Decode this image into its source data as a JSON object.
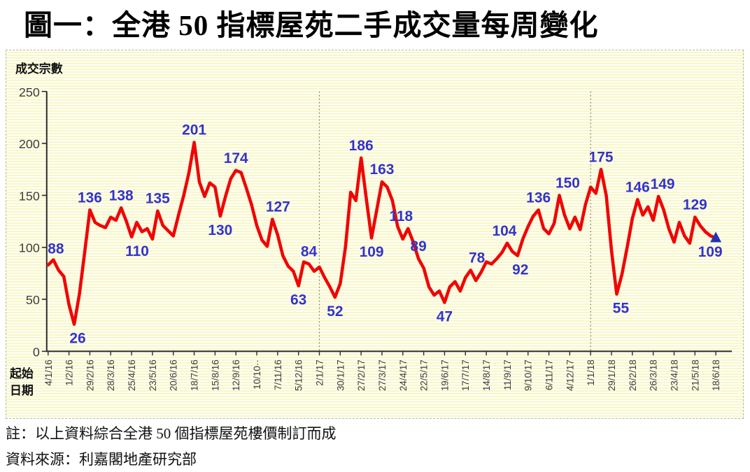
{
  "title": "圖一：全港 50 指標屋苑二手成交量每周變化",
  "notes": [
    "註：以上資料綜合全港 50 個指標屋苑樓價制訂而成",
    "資料來源：利嘉閣地產研究部"
  ],
  "chart_data": {
    "type": "line",
    "title": "圖一：全港 50 指標屋苑二手成交量每周變化",
    "y_axis_title": "成交宗數",
    "x_axis_title_lines": [
      "起始",
      "日期"
    ],
    "ylim": [
      0,
      250
    ],
    "y_ticks": [
      0,
      50,
      100,
      150,
      200,
      250
    ],
    "x_tick_interval_weeks": 4,
    "x_tick_labels": [
      "4/1/16",
      "1/2/16",
      "29/2/16",
      "28/3/16",
      "25/4/16",
      "23/5/16",
      "20/6/16",
      "18/7/16",
      "15/8/16",
      "12/9/16",
      "10/10··",
      "7/11/16",
      "5/12/16",
      "2/1/17",
      "30/1/17",
      "27/2/17",
      "27/3/17",
      "24/4/17",
      "22/5/17",
      "19/6/17",
      "17/7/17",
      "14/8/17",
      "11/9/17",
      "9/10/17",
      "6/11/17",
      "4/12/17",
      "1/1/18",
      "29/1/18",
      "26/2/18",
      "26/3/18",
      "23/4/18",
      "21/5/18",
      "18/6/18"
    ],
    "weekly_values": [
      83,
      88,
      78,
      72,
      45,
      26,
      55,
      95,
      136,
      124,
      121,
      119,
      129,
      126,
      138,
      125,
      110,
      124,
      115,
      118,
      108,
      135,
      121,
      116,
      111,
      131,
      150,
      172,
      201,
      163,
      149,
      162,
      158,
      130,
      149,
      166,
      174,
      172,
      157,
      141,
      121,
      107,
      101,
      127,
      112,
      92,
      82,
      77,
      63,
      86,
      84,
      77,
      81,
      71,
      62,
      52,
      65,
      100,
      153,
      145,
      186,
      147,
      109,
      136,
      163,
      158,
      145,
      120,
      108,
      118,
      105,
      89,
      80,
      62,
      54,
      58,
      47,
      62,
      67,
      58,
      71,
      78,
      68,
      76,
      86,
      84,
      89,
      95,
      104,
      96,
      92,
      108,
      120,
      130,
      136,
      118,
      113,
      123,
      150,
      131,
      118,
      129,
      117,
      141,
      158,
      152,
      175,
      150,
      97,
      55,
      74,
      100,
      128,
      146,
      131,
      139,
      126,
      149,
      136,
      118,
      105,
      124,
      111,
      104,
      129,
      121,
      115,
      111,
      109
    ],
    "point_labels": [
      {
        "text": "88",
        "week": 1,
        "value": 88,
        "pos": "above-left"
      },
      {
        "text": "26",
        "week": 5,
        "value": 26,
        "pos": "below",
        "dx": 5
      },
      {
        "text": "136",
        "week": 8,
        "value": 136,
        "pos": "above"
      },
      {
        "text": "138",
        "week": 14,
        "value": 138,
        "pos": "above"
      },
      {
        "text": "110",
        "week": 16,
        "value": 110,
        "pos": "below",
        "dx": 8
      },
      {
        "text": "135",
        "week": 21,
        "value": 135,
        "pos": "above"
      },
      {
        "text": "201",
        "week": 28,
        "value": 201,
        "pos": "above"
      },
      {
        "text": "130",
        "week": 33,
        "value": 130,
        "pos": "below"
      },
      {
        "text": "174",
        "week": 36,
        "value": 174,
        "pos": "above"
      },
      {
        "text": "127",
        "week": 43,
        "value": 127,
        "pos": "above",
        "dx": 8
      },
      {
        "text": "63",
        "week": 48,
        "value": 63,
        "pos": "below"
      },
      {
        "text": "84",
        "week": 50,
        "value": 84,
        "pos": "above"
      },
      {
        "text": "52",
        "week": 55,
        "value": 52,
        "pos": "below"
      },
      {
        "text": "186",
        "week": 60,
        "value": 186,
        "pos": "above"
      },
      {
        "text": "109",
        "week": 62,
        "value": 109,
        "pos": "below"
      },
      {
        "text": "163",
        "week": 64,
        "value": 163,
        "pos": "above"
      },
      {
        "text": "118",
        "week": 69,
        "value": 118,
        "pos": "above",
        "dx": -10
      },
      {
        "text": "89",
        "week": 71,
        "value": 89,
        "pos": "above"
      },
      {
        "text": "47",
        "week": 76,
        "value": 47,
        "pos": "below"
      },
      {
        "text": "78",
        "week": 81,
        "value": 78,
        "pos": "above",
        "dx": 9
      },
      {
        "text": "104",
        "week": 88,
        "value": 104,
        "pos": "above",
        "dx": -4
      },
      {
        "text": "92",
        "week": 90,
        "value": 92,
        "pos": "below",
        "dx": 4
      },
      {
        "text": "136",
        "week": 94,
        "value": 136,
        "pos": "above"
      },
      {
        "text": "150",
        "week": 98,
        "value": 150,
        "pos": "above",
        "dx": 12
      },
      {
        "text": "175",
        "week": 106,
        "value": 175,
        "pos": "above"
      },
      {
        "text": "55",
        "week": 109,
        "value": 55,
        "pos": "below",
        "dx": 6
      },
      {
        "text": "146",
        "week": 113,
        "value": 146,
        "pos": "above"
      },
      {
        "text": "149",
        "week": 117,
        "value": 149,
        "pos": "above",
        "dx": 6
      },
      {
        "text": "129",
        "week": 124,
        "value": 129,
        "pos": "above"
      },
      {
        "text": "109",
        "week": 128,
        "value": 109,
        "pos": "below",
        "dx": -8
      }
    ],
    "dashed_vlines": [
      {
        "label": "2/1/17",
        "week": 52
      },
      {
        "label": "1/1/18",
        "week": 104
      }
    ],
    "last_point_marker": "triangle",
    "legend": "none",
    "grid": "off",
    "colors": {
      "line": "#f00505",
      "point_labels": "#3333cc",
      "marker": "#2233b4",
      "axis": "#2b2b2b",
      "tick_text": "#3d3d3d",
      "dashed_vline": "#85856a",
      "plot_bg": "#fbfbd8"
    }
  }
}
